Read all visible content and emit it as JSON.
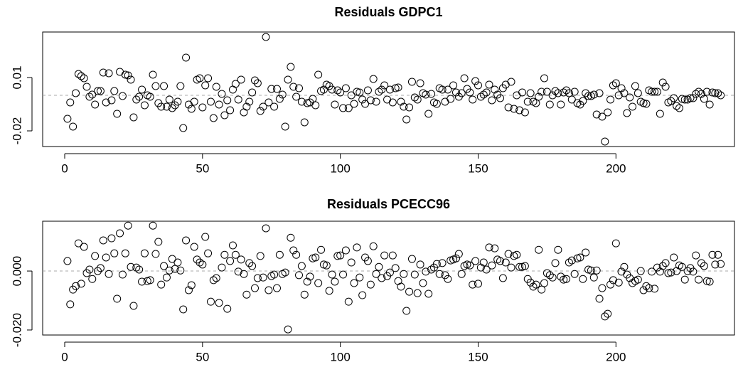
{
  "chart_data": [
    {
      "type": "scatter",
      "title": "Residuals GDPC1",
      "color": "#000000",
      "hline": 0,
      "xlim": [
        -8,
        243
      ],
      "xticks": [
        0,
        50,
        100,
        150,
        200
      ],
      "ylim": [
        -0.0288,
        0.0356
      ],
      "yticks": [
        -0.02,
        0.01
      ],
      "x": [
        1,
        2,
        3,
        4,
        5,
        6,
        7,
        8,
        9,
        10,
        11,
        12,
        13,
        14,
        15,
        16,
        17,
        18,
        19,
        20,
        21,
        22,
        23,
        24,
        25,
        26,
        27,
        28,
        29,
        30,
        31,
        32,
        33,
        34,
        35,
        36,
        37,
        38,
        39,
        40,
        41,
        42,
        43,
        44,
        45,
        46,
        47,
        48,
        49,
        50,
        51,
        52,
        53,
        54,
        55,
        56,
        57,
        58,
        59,
        60,
        61,
        62,
        63,
        64,
        65,
        66,
        67,
        68,
        69,
        70,
        71,
        72,
        73,
        74,
        75,
        76,
        77,
        78,
        79,
        80,
        81,
        82,
        83,
        84,
        85,
        86,
        87,
        88,
        89,
        90,
        91,
        92,
        93,
        94,
        95,
        96,
        97,
        98,
        99,
        100,
        101,
        102,
        103,
        104,
        105,
        106,
        107,
        108,
        109,
        110,
        111,
        112,
        113,
        114,
        115,
        116,
        117,
        118,
        119,
        120,
        121,
        122,
        123,
        124,
        125,
        126,
        127,
        128,
        129,
        130,
        131,
        132,
        133,
        134,
        135,
        136,
        137,
        138,
        139,
        140,
        141,
        142,
        143,
        144,
        145,
        146,
        147,
        148,
        149,
        150,
        151,
        152,
        153,
        154,
        155,
        156,
        157,
        158,
        159,
        160,
        161,
        162,
        163,
        164,
        165,
        166,
        167,
        168,
        169,
        170,
        171,
        172,
        173,
        174,
        175,
        176,
        177,
        178,
        179,
        180,
        181,
        182,
        183,
        184,
        185,
        186,
        187,
        188,
        189,
        190,
        191,
        192,
        193,
        194,
        195,
        196,
        197,
        198,
        199,
        200,
        201,
        202,
        203,
        204,
        205,
        206,
        207,
        208,
        209,
        210,
        211,
        212,
        213,
        214,
        215,
        216,
        217,
        218,
        219,
        220,
        221,
        222,
        223,
        224,
        225,
        226,
        227,
        228,
        229,
        230,
        231,
        232,
        233,
        234,
        235,
        236,
        237,
        238
      ],
      "values": [
        -0.0132,
        -0.004,
        -0.0176,
        0.0012,
        0.012,
        0.0108,
        0.0096,
        0.0048,
        -0.0008,
        0.0004,
        -0.0052,
        0.0024,
        0.0024,
        0.0128,
        -0.004,
        0.0124,
        -0.0028,
        0.0024,
        -0.0104,
        0.0132,
        -0.0004,
        0.0116,
        0.0112,
        0.0088,
        -0.0124,
        -0.0024,
        -0.0008,
        0.0032,
        -0.0056,
        0,
        -0.0008,
        0.0116,
        0.0052,
        -0.0044,
        -0.0064,
        0.0052,
        -0.0064,
        -0.0024,
        -0.0072,
        -0.0056,
        -0.0036,
        0.0052,
        -0.0184,
        0.0212,
        -0.0052,
        -0.0076,
        -0.0036,
        0.0088,
        0.0096,
        -0.0068,
        0.0056,
        0.0096,
        -0.0036,
        -0.0128,
        0.0048,
        -0.0052,
        0.0008,
        -0.0112,
        -0.0028,
        -0.0084,
        0.0032,
        0.0064,
        -0.0024,
        0.0088,
        -0.0096,
        -0.0064,
        -0.0036,
        0.0016,
        0.0084,
        0.0068,
        -0.0088,
        -0.0064,
        0.0328,
        -0.004,
        0.0036,
        -0.0064,
        0.0036,
        -0.002,
        0.0004,
        -0.0176,
        0.0088,
        0.016,
        0.0048,
        -0.0008,
        0.004,
        -0.0036,
        -0.0152,
        -0.0044,
        -0.004,
        -0.002,
        -0.0056,
        0.0116,
        0.0024,
        0.0032,
        0.006,
        0.0052,
        0.0032,
        -0.0052,
        0.0028,
        0.0016,
        -0.0072,
        0.004,
        -0.0072,
        0,
        -0.0048,
        0.002,
        0.0016,
        -0.0024,
        -0.0048,
        0.0028,
        -0.0028,
        0.0092,
        -0.0036,
        0.002,
        0.0032,
        0.0056,
        -0.0024,
        0.0032,
        -0.004,
        0.004,
        0.0044,
        -0.0036,
        -0.0064,
        -0.0136,
        -0.0068,
        0.0076,
        -0.0012,
        -0.0024,
        0.0068,
        0.0012,
        0.0004,
        -0.0104,
        0.0008,
        -0.004,
        -0.0048,
        0.004,
        0.0032,
        -0.0036,
        0.0032,
        -0.002,
        0.0056,
        0.0016,
        -0.0008,
        0.0012,
        0.0096,
        0.0036,
        0.0016,
        -0.0024,
        0.008,
        0.0056,
        -0.0008,
        0.0004,
        0.0016,
        0.006,
        -0.0028,
        0.0032,
        0.0004,
        -0.0016,
        0.004,
        0.006,
        -0.0068,
        0.0076,
        -0.0076,
        0,
        -0.0084,
        0.0016,
        -0.0096,
        -0.0036,
        0.0012,
        -0.0036,
        -0.0044,
        -0.0008,
        0.002,
        0.0096,
        0.002,
        -0.0052,
        0,
        0.0024,
        0.0012,
        -0.0052,
        0.0016,
        0.0028,
        0.0012,
        -0.0024,
        0.002,
        -0.0044,
        -0.0052,
        -0.0032,
        0.0012,
        -0.0004,
        -0.0004,
        0.0004,
        -0.0108,
        0.0012,
        -0.012,
        -0.026,
        -0.0096,
        -0.0024,
        0.0056,
        0.0068,
        0,
        0.004,
        0.0012,
        -0.01,
        -0.0012,
        -0.0064,
        0.0052,
        0.0012,
        -0.0036,
        -0.0044,
        -0.0048,
        0.0028,
        0.002,
        0.002,
        0.002,
        -0.0104,
        0.0072,
        0.0048,
        -0.004,
        -0.0032,
        -0.0016,
        -0.006,
        -0.0072,
        -0.002,
        -0.0024,
        -0.0024,
        -0.0016,
        -0.0016,
        0.0008,
        0.002,
        0.0008,
        -0.002,
        0.002,
        -0.0052,
        0.0016,
        0.0012,
        0.0012,
        0
      ]
    },
    {
      "type": "scatter",
      "title": "Residuals PCECC96",
      "color": "#000000",
      "hline": 0,
      "xlim": [
        -8,
        243
      ],
      "xticks": [
        0,
        50,
        100,
        150,
        200
      ],
      "ylim": [
        -0.0217,
        0.0169
      ],
      "yticks": [
        {
          "value": -0.02,
          "label": "-0.020"
        },
        {
          "value": 0,
          "label": "0.000"
        }
      ],
      "x": [
        1,
        2,
        3,
        4,
        5,
        6,
        7,
        8,
        9,
        10,
        11,
        12,
        13,
        14,
        15,
        16,
        17,
        18,
        19,
        20,
        21,
        22,
        23,
        24,
        25,
        26,
        27,
        28,
        29,
        30,
        31,
        32,
        33,
        34,
        35,
        36,
        37,
        38,
        39,
        40,
        41,
        42,
        43,
        44,
        45,
        46,
        47,
        48,
        49,
        50,
        51,
        52,
        53,
        54,
        55,
        56,
        57,
        58,
        59,
        60,
        61,
        62,
        63,
        64,
        65,
        66,
        67,
        68,
        69,
        70,
        71,
        72,
        73,
        74,
        75,
        76,
        77,
        78,
        79,
        80,
        81,
        82,
        83,
        84,
        85,
        86,
        87,
        88,
        89,
        90,
        91,
        92,
        93,
        94,
        95,
        96,
        97,
        98,
        99,
        100,
        101,
        102,
        103,
        104,
        105,
        106,
        107,
        108,
        109,
        110,
        111,
        112,
        113,
        114,
        115,
        116,
        117,
        118,
        119,
        120,
        121,
        122,
        123,
        124,
        125,
        126,
        127,
        128,
        129,
        130,
        131,
        132,
        133,
        134,
        135,
        136,
        137,
        138,
        139,
        140,
        141,
        142,
        143,
        144,
        145,
        146,
        147,
        148,
        149,
        150,
        151,
        152,
        153,
        154,
        155,
        156,
        157,
        158,
        159,
        160,
        161,
        162,
        163,
        164,
        165,
        166,
        167,
        168,
        169,
        170,
        171,
        172,
        173,
        174,
        175,
        176,
        177,
        178,
        179,
        180,
        181,
        182,
        183,
        184,
        185,
        186,
        187,
        188,
        189,
        190,
        191,
        192,
        193,
        194,
        195,
        196,
        197,
        198,
        199,
        200,
        201,
        202,
        203,
        204,
        205,
        206,
        207,
        208,
        209,
        210,
        211,
        212,
        213,
        214,
        215,
        216,
        217,
        218,
        219,
        220,
        221,
        222,
        223,
        224,
        225,
        226,
        227,
        228,
        229,
        230,
        231,
        232,
        233,
        234,
        235,
        236,
        237,
        238
      ],
      "values": [
        0.0034,
        -0.0113,
        -0.0063,
        -0.0051,
        0.0094,
        -0.0043,
        0.0082,
        -0.0007,
        0.0005,
        -0.0027,
        0.0051,
        0,
        0.001,
        0.0104,
        0.0046,
        -0.001,
        0.0111,
        0.006,
        -0.0094,
        0.0128,
        -0.0012,
        0.006,
        0.0154,
        0.0014,
        -0.0118,
        0.0012,
        0.0005,
        -0.0036,
        0.006,
        -0.0034,
        -0.0031,
        0.0154,
        0.0058,
        0.0099,
        -0.0046,
        0.0017,
        -0.0022,
        0.0002,
        0.0041,
        0.0007,
        0.0029,
        0.0002,
        -0.013,
        0.0104,
        -0.0065,
        -0.0048,
        0.0082,
        0.0039,
        0.0029,
        0.0022,
        0.0116,
        0.006,
        -0.0104,
        -0.0031,
        -0.0024,
        -0.0108,
        0.0012,
        0.0055,
        -0.0128,
        0.0034,
        0.0087,
        0.0055,
        -0.0002,
        0.0039,
        -0.001,
        -0.008,
        0.0027,
        0.0017,
        -0.0058,
        -0.0024,
        0.0051,
        -0.0022,
        0.0145,
        -0.0065,
        -0.0017,
        -0.0012,
        -0.0058,
        0.0055,
        -0.001,
        -0.0005,
        -0.0198,
        0.0113,
        0.007,
        0.0055,
        -0.0014,
        0.0017,
        -0.008,
        -0.0036,
        -0.0019,
        0.0043,
        0.0046,
        -0.0041,
        0.0072,
        0.0022,
        0.0019,
        -0.0067,
        -0.0012,
        -0.0036,
        0.0051,
        0.0053,
        -0.0012,
        0.007,
        -0.0104,
        0.0029,
        -0.0041,
        0.008,
        -0.0022,
        -0.0082,
        0.0046,
        0.0034,
        -0.0046,
        0.0084,
        -0.001,
        0.0014,
        -0.0024,
        0.0053,
        -0.0017,
        -0.0005,
        0.0053,
        0.001,
        -0.0034,
        -0.0053,
        -0.001,
        -0.0135,
        -0.007,
        0.0041,
        -0.0012,
        -0.0075,
        0.0022,
        -0.0041,
        -0.0002,
        -0.0077,
        0.0005,
        0.0012,
        0.0024,
        -0.001,
        0.0027,
        -0.0014,
        -0.0027,
        0.0036,
        0.0039,
        0.0043,
        0.0058,
        -0.001,
        0.0017,
        0.0022,
        0.0019,
        -0.0046,
        0.0034,
        -0.0043,
        0.0012,
        0.0029,
        0.0005,
        0.008,
        0.0019,
        0.0077,
        0.0039,
        0.0034,
        -0.0024,
        0.0029,
        0.0058,
        0.0012,
        0.0051,
        0.0055,
        0.0014,
        0.0014,
        0.0017,
        -0.0027,
        -0.0039,
        -0.0053,
        -0.0046,
        0.0072,
        -0.0063,
        -0.0041,
        -0.0007,
        -0.0014,
        -0.0022,
        0.0027,
        0.0072,
        -0.0019,
        -0.0029,
        -0.0027,
        0.0029,
        0.0036,
        -0.001,
        0.0043,
        0.0046,
        -0.0027,
        0.0063,
        0.0005,
        0.0002,
        -0.0022,
        0.0002,
        -0.0094,
        -0.0058,
        -0.0154,
        -0.0145,
        -0.0046,
        -0.0031,
        0.0094,
        -0.0039,
        -0.0002,
        0.0014,
        -0.0012,
        -0.0024,
        -0.0041,
        -0.0034,
        -0.0029,
        0,
        -0.0065,
        -0.0051,
        -0.0058,
        -0.0002,
        -0.006,
        0.0012,
        -0.0002,
        0.0017,
        0.0027,
        -0.0007,
        -0.0005,
        0.0046,
        0,
        0.0019,
        0.0014,
        -0.0029,
        0,
        0.001,
        -0.0002,
        0.0053,
        -0.0029,
        0.0027,
        0.0017,
        -0.0034,
        -0.0036,
        0.0055,
        0.0022,
        0.0055,
        0.0024
      ]
    }
  ]
}
